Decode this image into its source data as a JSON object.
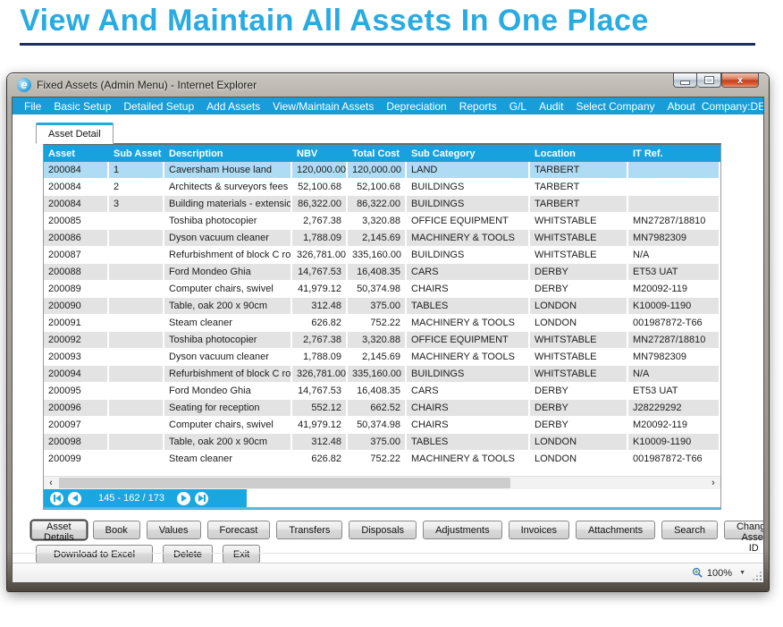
{
  "page": {
    "heading": "View And Maintain All Assets In One Place"
  },
  "window": {
    "title": "Fixed Assets (Admin Menu) - Internet Explorer",
    "close_glyph": "x"
  },
  "menubar": {
    "items": [
      "File",
      "Basic Setup",
      "Detailed Setup",
      "Add Assets",
      "View/Maintain Assets",
      "Depreciation",
      "Reports",
      "G/L",
      "Audit",
      "Select Company",
      "About"
    ],
    "company": "Company:DEMO"
  },
  "tab": {
    "label": "Asset Detail"
  },
  "table": {
    "columns": [
      "Asset",
      "Sub Asset",
      "Description",
      "NBV",
      "Total Cost",
      "Sub Category",
      "Location",
      "IT Ref."
    ],
    "numeric_columns": [
      3,
      4
    ],
    "selected_row_index": 0,
    "rows": [
      [
        "200084",
        "1",
        "Caversham House land",
        "120,000.00",
        "120,000.00",
        "LAND",
        "TARBERT",
        ""
      ],
      [
        "200084",
        "2",
        "Architects & surveyors fees",
        "52,100.68",
        "52,100.68",
        "BUILDINGS",
        "TARBERT",
        ""
      ],
      [
        "200084",
        "3",
        "Building materials - extension",
        "86,322.00",
        "86,322.00",
        "BUILDINGS",
        "TARBERT",
        ""
      ],
      [
        "200085",
        "",
        "Toshiba photocopier",
        "2,767.38",
        "3,320.88",
        "OFFICE EQUIPMENT",
        "WHITSTABLE",
        "MN27287/18810"
      ],
      [
        "200086",
        "",
        "Dyson vacuum cleaner",
        "1,788.09",
        "2,145.69",
        "MACHINERY & TOOLS",
        "WHITSTABLE",
        "MN7982309"
      ],
      [
        "200087",
        "",
        "Refurbishment of block C roof",
        "326,781.00",
        "335,160.00",
        "BUILDINGS",
        "WHITSTABLE",
        "N/A"
      ],
      [
        "200088",
        "",
        "Ford Mondeo Ghia",
        "14,767.53",
        "16,408.35",
        "CARS",
        "DERBY",
        "ET53 UAT"
      ],
      [
        "200089",
        "",
        "Computer chairs, swivel",
        "41,979.12",
        "50,374.98",
        "CHAIRS",
        "DERBY",
        "M20092-119"
      ],
      [
        "200090",
        "",
        "Table, oak 200 x 90cm",
        "312.48",
        "375.00",
        "TABLES",
        "LONDON",
        "K10009-1190"
      ],
      [
        "200091",
        "",
        "Steam cleaner",
        "626.82",
        "752.22",
        "MACHINERY & TOOLS",
        "LONDON",
        "001987872-T66"
      ],
      [
        "200092",
        "",
        "Toshiba photocopier",
        "2,767.38",
        "3,320.88",
        "OFFICE EQUIPMENT",
        "WHITSTABLE",
        "MN27287/18810"
      ],
      [
        "200093",
        "",
        "Dyson vacuum cleaner",
        "1,788.09",
        "2,145.69",
        "MACHINERY & TOOLS",
        "WHITSTABLE",
        "MN7982309"
      ],
      [
        "200094",
        "",
        "Refurbishment of block C roof",
        "326,781.00",
        "335,160.00",
        "BUILDINGS",
        "WHITSTABLE",
        "N/A"
      ],
      [
        "200095",
        "",
        "Ford Mondeo Ghia",
        "14,767.53",
        "16,408.35",
        "CARS",
        "DERBY",
        "ET53 UAT"
      ],
      [
        "200096",
        "",
        "Seating for reception",
        "552.12",
        "662.52",
        "CHAIRS",
        "DERBY",
        "J28229292"
      ],
      [
        "200097",
        "",
        "Computer chairs, swivel",
        "41,979.12",
        "50,374.98",
        "CHAIRS",
        "DERBY",
        "M20092-119"
      ],
      [
        "200098",
        "",
        "Table, oak 200 x 90cm",
        "312.48",
        "375.00",
        "TABLES",
        "LONDON",
        "K10009-1190"
      ],
      [
        "200099",
        "",
        "Steam cleaner",
        "626.82",
        "752.22",
        "MACHINERY & TOOLS",
        "LONDON",
        "001987872-T66"
      ]
    ]
  },
  "pagination": {
    "label": "145 - 162 / 173"
  },
  "buttons_row1": [
    "Asset Details",
    "Book",
    "Values",
    "Forecast",
    "Transfers",
    "Disposals",
    "Adjustments",
    "Invoices",
    "Attachments",
    "Search",
    "Change Asset ID"
  ],
  "buttons_row2": [
    "Download to Excel",
    "Delete",
    "Exit"
  ],
  "statusbar": {
    "zoom": "100%"
  },
  "colors": {
    "accent_blue": "#18a0dc",
    "heading_cyan": "#29abe2",
    "heading_rule_navy": "#1d2e5a",
    "selected_row": "#aedcf2",
    "alt_row_gray": "#e3e3e3"
  }
}
